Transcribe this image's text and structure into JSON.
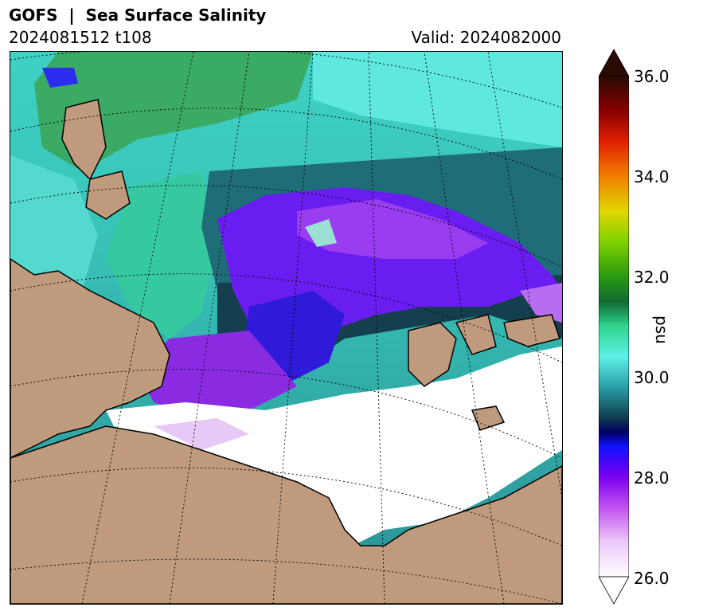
{
  "header": {
    "title": "GOFS  |  Sea Surface Salinity",
    "run_label": "2024081512 t108",
    "valid_label": "Valid: 2024082000"
  },
  "map": {
    "land_color": "#c09a7c",
    "water_fresh_color": "#ffffff",
    "graticule_style": "dotted"
  },
  "colorbar": {
    "unit_label": "psu",
    "ticks": [
      "36.0",
      "34.0",
      "32.0",
      "30.0",
      "28.0",
      "26.0"
    ],
    "range": [
      26.0,
      36.0
    ],
    "extend": "both"
  }
}
